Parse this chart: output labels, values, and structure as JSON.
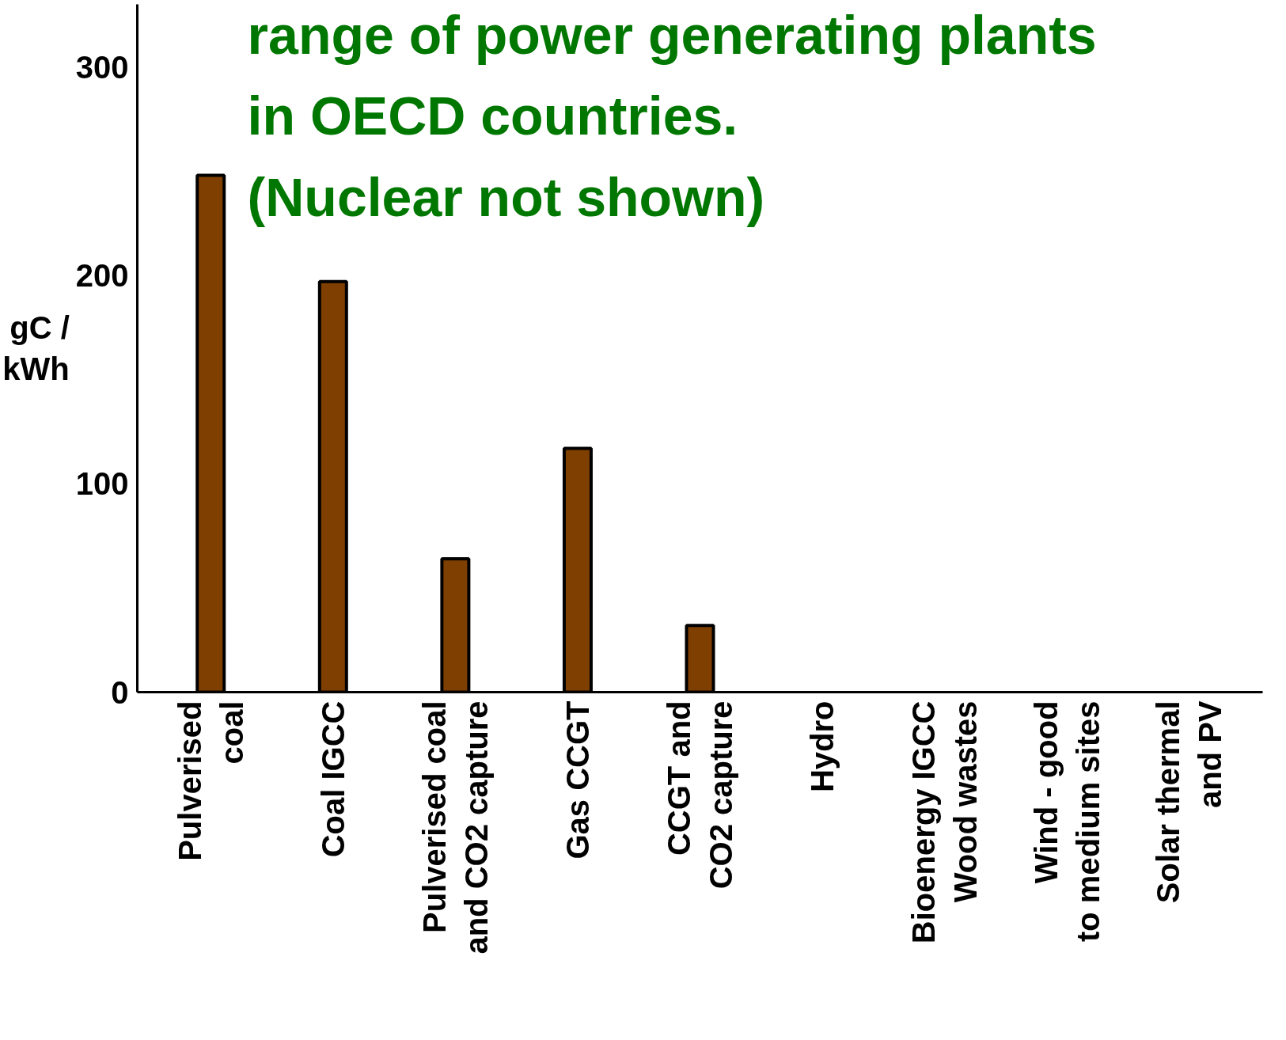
{
  "chart_data": {
    "type": "bar",
    "title": "range of power generating plants\nin OECD countries.\n(Nuclear not shown)",
    "ylabel": "gC /\nkWh",
    "categories": [
      "Pulverised\ncoal",
      "Coal IGCC",
      "Pulverised coal\nand CO2 capture",
      "Gas CCGT",
      "CCGT and\nCO2 capture",
      "Hydro",
      "Bioenergy IGCC\nWood wastes",
      "Wind - good\nto medium sites",
      "Solar thermal\nand PV"
    ],
    "values": [
      248,
      197,
      64,
      117,
      32,
      null,
      null,
      null,
      null
    ],
    "color": "#7f3f00",
    "ylim": [
      0,
      330
    ],
    "yticks": [
      0,
      100,
      200,
      300
    ],
    "grid": false
  }
}
